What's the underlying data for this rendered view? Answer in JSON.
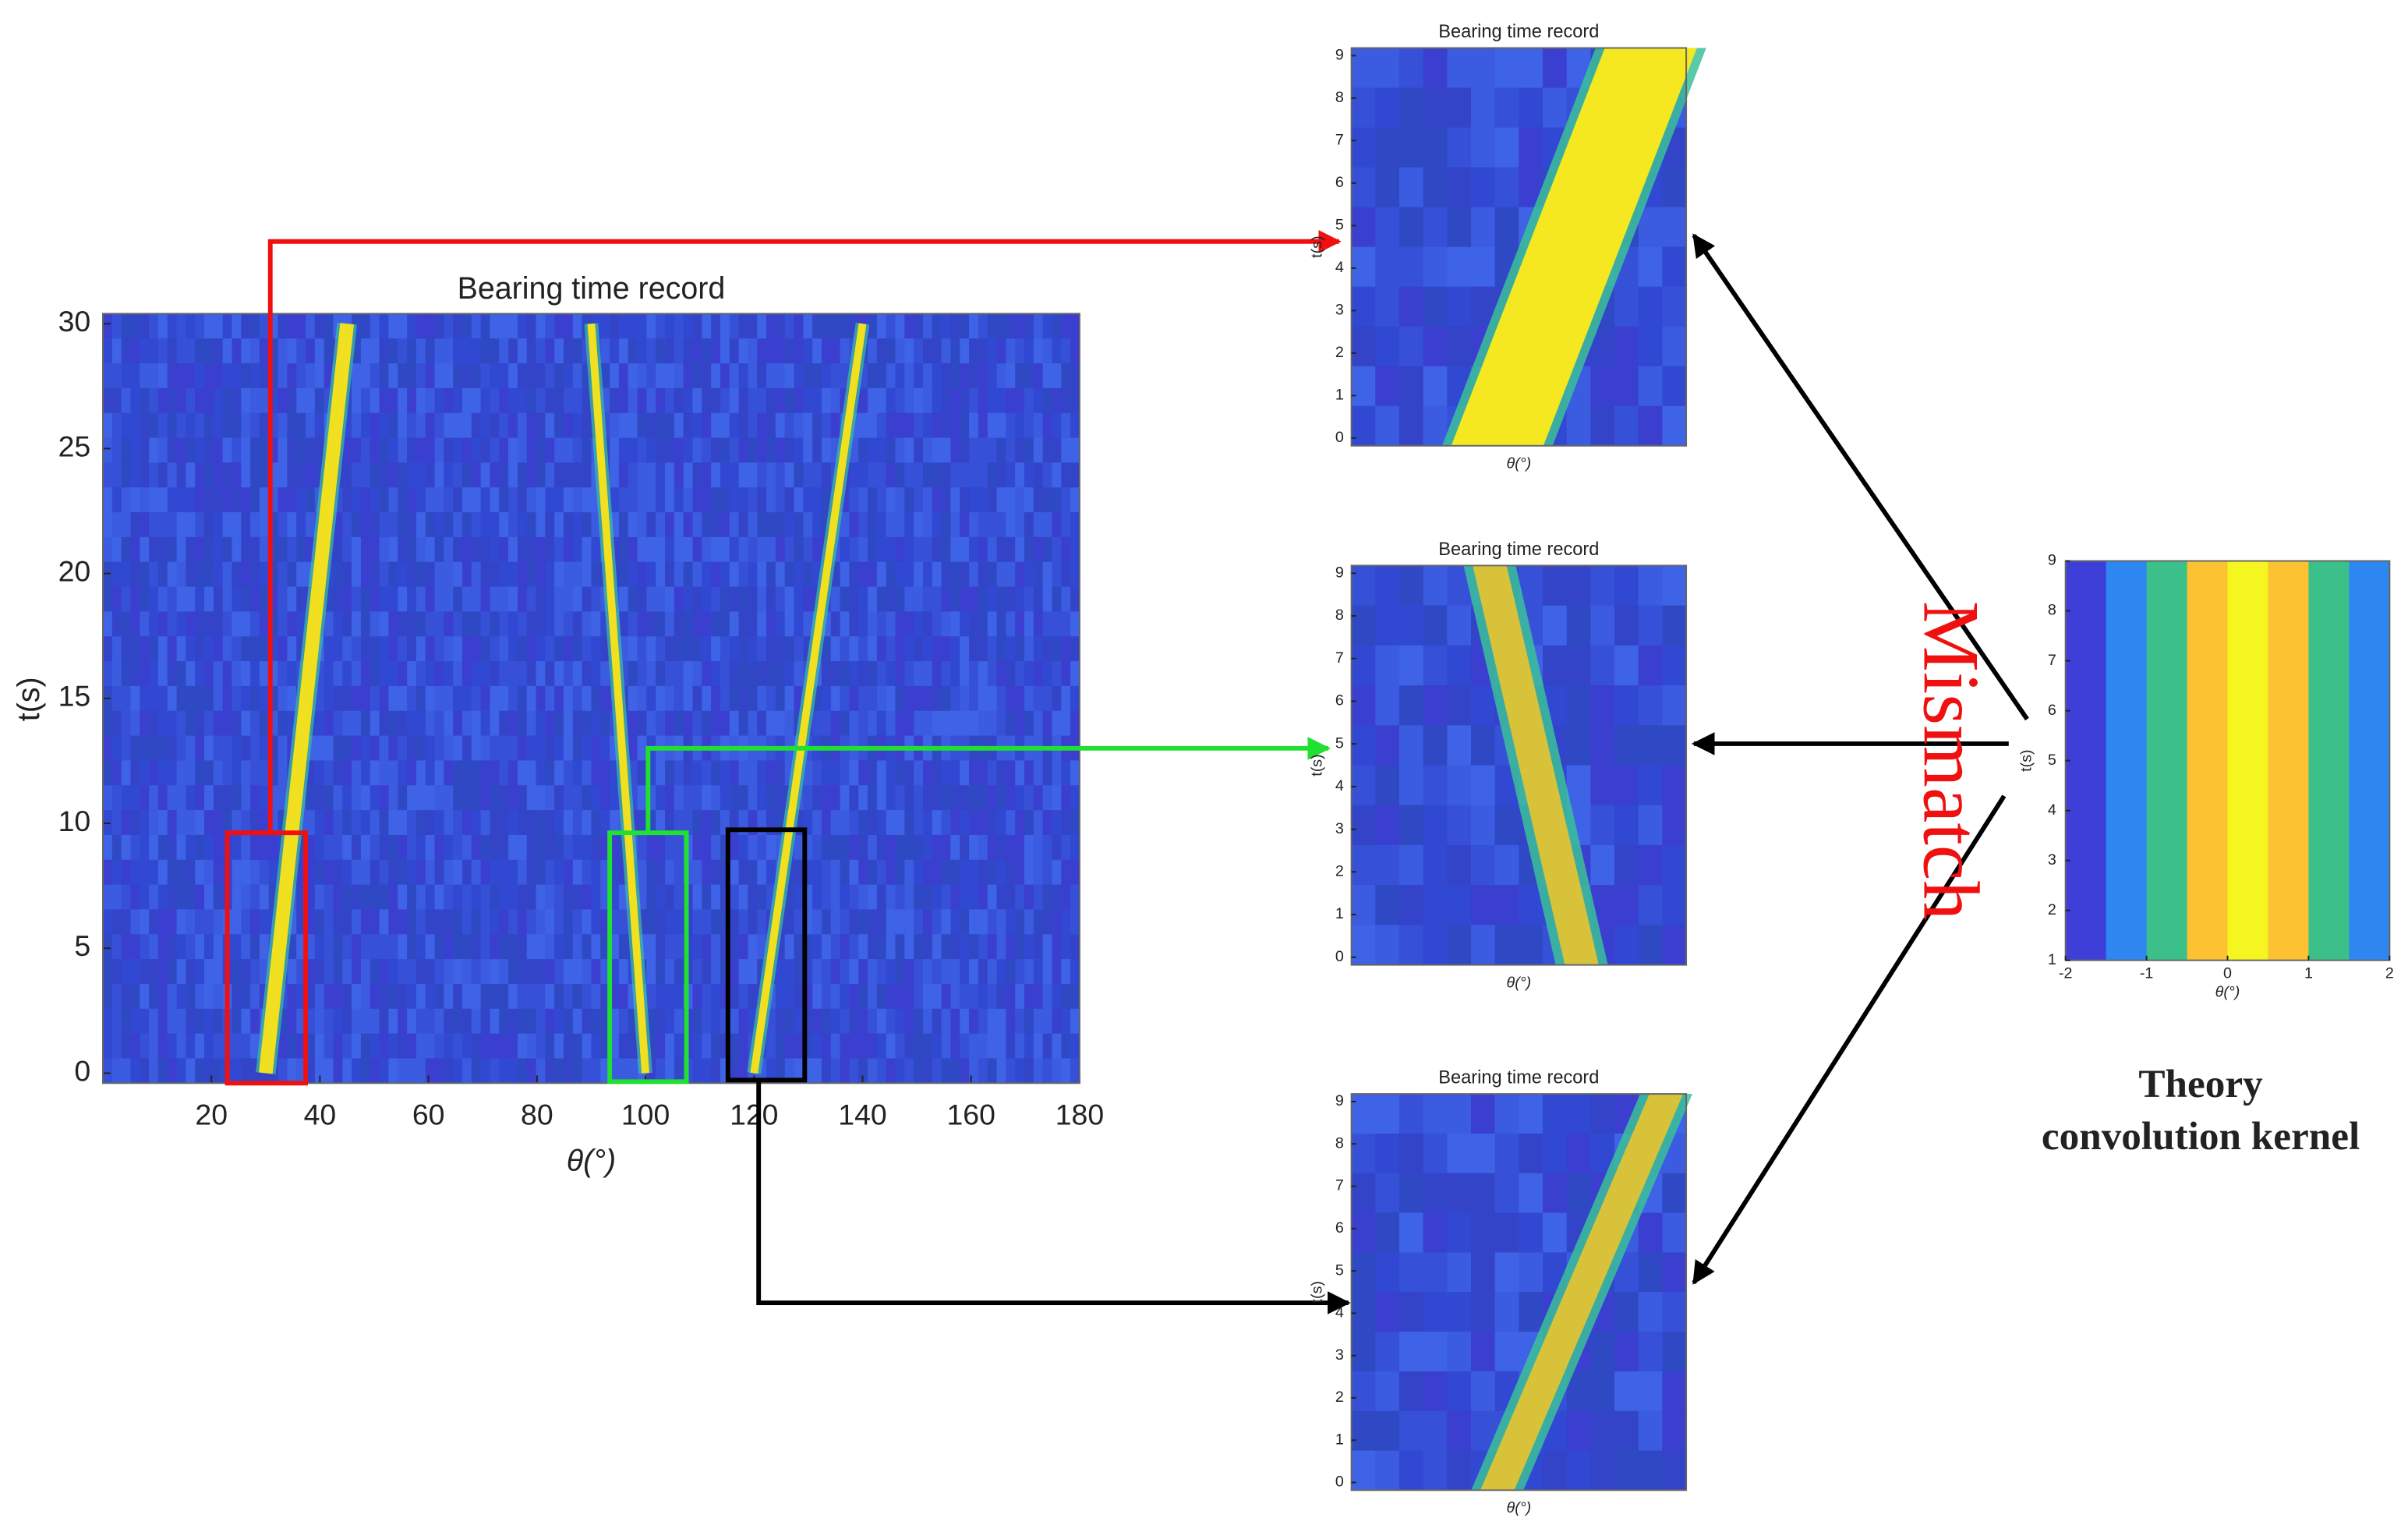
{
  "main_plot": {
    "title": "Bearing time record",
    "x_label": "θ(°)",
    "y_label": "t(s)",
    "xlim": [
      0,
      180
    ],
    "ylim": [
      -0.4,
      30.4
    ],
    "xticks": [
      20,
      40,
      60,
      80,
      100,
      120,
      140,
      160,
      180
    ],
    "yticks": [
      0,
      5,
      10,
      15,
      20,
      25,
      30
    ],
    "tracks": [
      {
        "theta": [
          30,
          45
        ],
        "t": [
          0,
          30
        ]
      },
      {
        "theta": [
          100,
          90
        ],
        "t": [
          0,
          30
        ]
      },
      {
        "theta": [
          120,
          140
        ],
        "t": [
          0,
          30
        ]
      }
    ]
  },
  "panels": [
    {
      "title": "Bearing time record",
      "x_label": "θ(°)",
      "y_label": "t(s)",
      "yticks": [
        0,
        1,
        2,
        3,
        4,
        5,
        6,
        7,
        8,
        9
      ]
    },
    {
      "title": "Bearing time record",
      "x_label": "θ(°)",
      "y_label": "t(s)",
      "yticks": [
        0,
        1,
        2,
        3,
        4,
        5,
        6,
        7,
        8,
        9
      ]
    },
    {
      "title": "Bearing time record",
      "x_label": "θ(°)",
      "y_label": "t(s)",
      "yticks": [
        0,
        1,
        2,
        3,
        4,
        5,
        6,
        7,
        8,
        9
      ]
    }
  ],
  "kernel": {
    "x_label": "θ(°)",
    "y_label": "t(s)",
    "xlim": [
      -2,
      2
    ],
    "ylim": [
      1,
      9
    ],
    "xticks": [
      -2,
      -1,
      0,
      1,
      2
    ],
    "yticks": [
      1,
      2,
      3,
      4,
      5,
      6,
      7,
      8,
      9
    ],
    "colors": [
      "#3d3fd8",
      "#2e86f0",
      "#3bc08a",
      "#fcc231",
      "#f5f520",
      "#fcc231",
      "#3bc08a",
      "#2e86f0"
    ]
  },
  "mismatch_label": "Mismatch",
  "caption": [
    "Theory",
    "convolution kernel"
  ]
}
